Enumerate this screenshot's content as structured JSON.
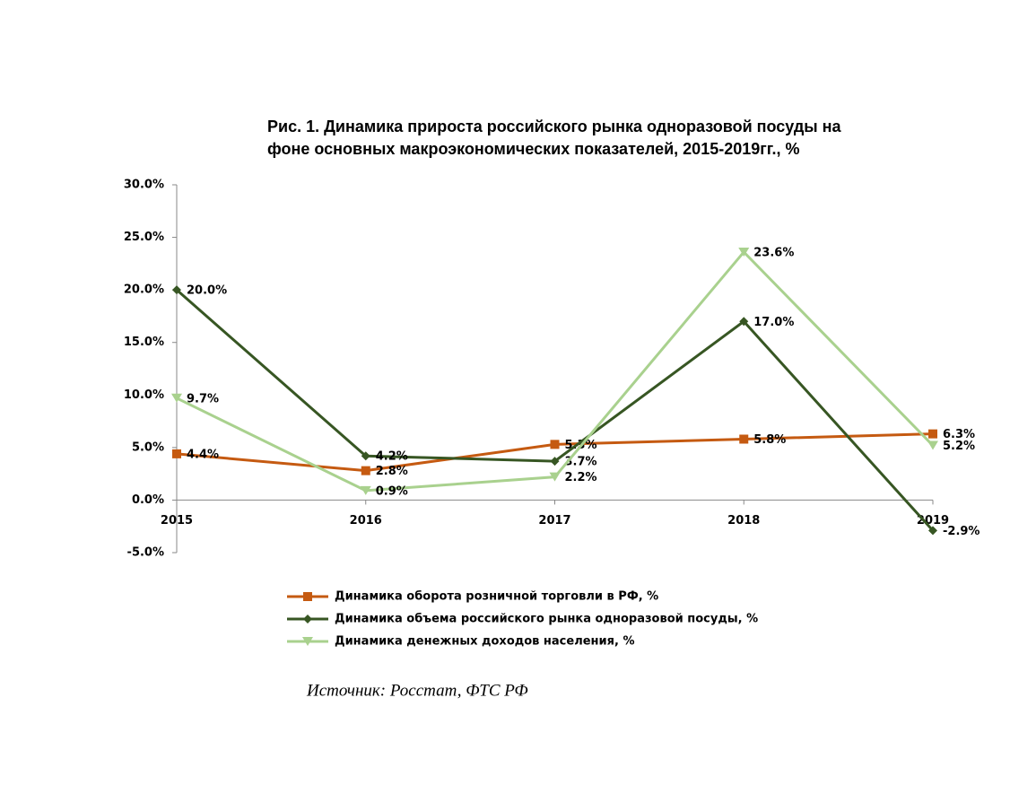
{
  "chart_data": {
    "type": "line",
    "title": [
      "Рис. 1. Динамика прироста российского рынка одноразовой посуды на",
      "фоне основных макроэкономических показателей, 2015-2019гг., %"
    ],
    "categories": [
      "2015",
      "2016",
      "2017",
      "2018",
      "2019"
    ],
    "series": [
      {
        "name": "Динамика оборота розничной торговли в РФ, %",
        "color": "#c55a11",
        "marker": "square",
        "values": [
          4.4,
          2.8,
          5.3,
          5.8,
          6.3
        ],
        "value_labels": [
          "4.4%",
          "2.8%",
          "5.3%",
          "5.8%",
          "6.3%"
        ]
      },
      {
        "name": "Динамика объема российского рынка одноразовой посуды, %",
        "color": "#375623",
        "marker": "diamond",
        "values": [
          20.0,
          4.2,
          3.7,
          17.0,
          -2.9
        ],
        "value_labels": [
          "20.0%",
          "4.2%",
          "3.7%",
          "17.0%",
          "-2.9%"
        ]
      },
      {
        "name": "Динамика денежных доходов населения, %",
        "color": "#a9d18e",
        "marker": "triangle-down",
        "values": [
          9.7,
          0.9,
          2.2,
          23.6,
          5.2
        ],
        "value_labels": [
          "9.7%",
          "0.9%",
          "2.2%",
          "23.6%",
          "5.2%"
        ]
      }
    ],
    "ylim": [
      -5,
      30
    ],
    "yticks": [
      {
        "value": -5,
        "label": "-5.0%"
      },
      {
        "value": 0,
        "label": "0.0%"
      },
      {
        "value": 5,
        "label": "5.0%"
      },
      {
        "value": 10,
        "label": "10.0%"
      },
      {
        "value": 15,
        "label": "15.0%"
      },
      {
        "value": 20,
        "label": "20.0%"
      },
      {
        "value": 25,
        "label": "25.0%"
      },
      {
        "value": 30,
        "label": "30.0%"
      }
    ],
    "grid": false,
    "legend": "bottom",
    "source": "Источник: Росстат, ФТС РФ"
  }
}
